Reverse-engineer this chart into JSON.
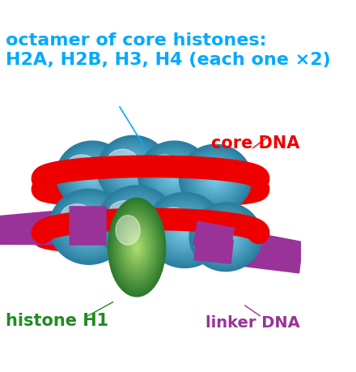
{
  "bg_color": "#ffffff",
  "title_text": "octamer of core histones:\nH2A, H2B, H3, H4 (each one ×2)",
  "title_color": "#00aaff",
  "title_fontsize": 16,
  "core_dna_label": "core DNA",
  "core_dna_color": "#ee0000",
  "linker_dna_label": "linker DNA",
  "linker_dna_color": "#993399",
  "histone_h1_label": "histone H1",
  "histone_h1_color": "#228b22",
  "sphere_light": "#7ecfea",
  "sphere_mid": "#4da8cc",
  "sphere_dark": "#2a7fa0",
  "dna_red": "#ee0000",
  "dna_purple": "#993399",
  "h1_green_light": "#b0e070",
  "h1_green_dark": "#2d7a2d",
  "figw": 4.4,
  "figh": 4.6,
  "dpi": 100
}
